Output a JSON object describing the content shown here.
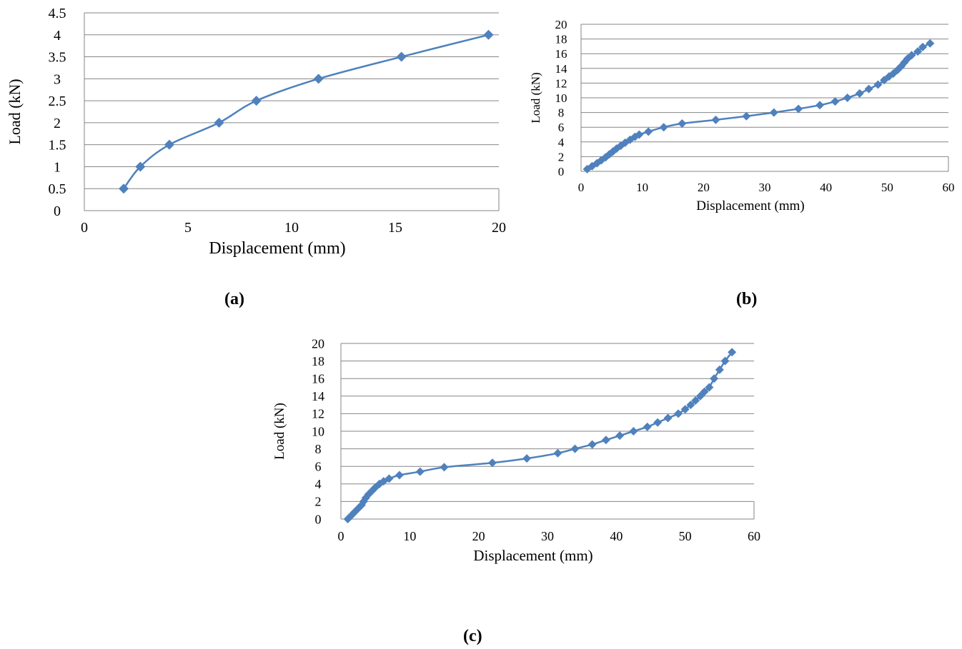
{
  "colors": {
    "series": "#4f81bd",
    "grid": "#868686",
    "axis": "#868686"
  },
  "captions": {
    "a": "(a)",
    "b": "(b)",
    "c": "(c)"
  },
  "chart_data": [
    {
      "id": "a",
      "type": "line",
      "xlabel": "Displacement (mm)",
      "ylabel": "Load (kN)",
      "xlim": [
        0,
        20
      ],
      "ylim": [
        0,
        4.5
      ],
      "xticks": [
        0,
        5,
        10,
        15,
        20
      ],
      "yticks": [
        0,
        0.5,
        1,
        1.5,
        2,
        2.5,
        3,
        3.5,
        4,
        4.5
      ],
      "ytick_labels": [
        "0",
        "0.5",
        "1",
        "1.5",
        "2",
        "2.5",
        "3",
        "3.5",
        "4",
        "4.5"
      ],
      "grid": true,
      "series": [
        {
          "x": [
            1.9,
            2.7,
            4.1,
            6.5,
            8.3,
            11.3,
            15.3,
            19.5
          ],
          "y": [
            0.5,
            1.0,
            1.5,
            2.0,
            2.5,
            3.0,
            3.5,
            4.0
          ]
        }
      ]
    },
    {
      "id": "b",
      "type": "line",
      "xlabel": "Displacement (mm)",
      "ylabel": "Load (kN)",
      "xlim": [
        0,
        60
      ],
      "ylim": [
        0,
        20
      ],
      "xticks": [
        0,
        10,
        20,
        30,
        40,
        50,
        60
      ],
      "yticks": [
        0,
        2,
        4,
        6,
        8,
        10,
        12,
        14,
        16,
        18,
        20
      ],
      "ytick_labels": [
        "0",
        "2",
        "4",
        "6",
        "8",
        "10",
        "12",
        "14",
        "16",
        "18",
        "20"
      ],
      "grid": true,
      "series": [
        {
          "x": [
            1.0,
            1.8,
            2.6,
            3.3,
            4.0,
            4.6,
            5.2,
            5.8,
            6.5,
            7.2,
            8.0,
            8.8,
            9.5,
            11.0,
            13.5,
            16.5,
            22.0,
            27.0,
            31.5,
            35.5,
            39.0,
            41.5,
            43.5,
            45.5,
            47.0,
            48.5,
            49.5,
            50.3,
            51.0,
            51.7,
            52.3,
            52.8,
            53.3,
            54.0,
            55.0,
            55.8,
            57.0
          ],
          "y": [
            0.3,
            0.7,
            1.1,
            1.5,
            1.9,
            2.3,
            2.7,
            3.1,
            3.5,
            3.9,
            4.3,
            4.7,
            5.0,
            5.4,
            6.0,
            6.5,
            7.0,
            7.5,
            8.0,
            8.5,
            9.0,
            9.5,
            10.0,
            10.6,
            11.2,
            11.8,
            12.4,
            12.9,
            13.3,
            13.8,
            14.3,
            14.8,
            15.3,
            15.8,
            16.3,
            16.9,
            17.4
          ]
        }
      ]
    },
    {
      "id": "c",
      "type": "line",
      "xlabel": "Displacement (mm)",
      "ylabel": "Load (kN)",
      "xlim": [
        0,
        60
      ],
      "ylim": [
        0,
        20
      ],
      "xticks": [
        0,
        10,
        20,
        30,
        40,
        50,
        60
      ],
      "yticks": [
        0,
        2,
        4,
        6,
        8,
        10,
        12,
        14,
        16,
        18,
        20
      ],
      "ytick_labels": [
        "0",
        "2",
        "4",
        "6",
        "8",
        "10",
        "12",
        "14",
        "16",
        "18",
        "20"
      ],
      "grid": true,
      "series": [
        {
          "x": [
            1.0,
            1.5,
            2.0,
            2.5,
            3.0,
            3.3,
            3.6,
            4.0,
            4.5,
            5.0,
            5.6,
            6.2,
            7.0,
            8.5,
            11.5,
            15.0,
            22.0,
            27.0,
            31.5,
            34.0,
            36.5,
            38.5,
            40.5,
            42.5,
            44.5,
            46.0,
            47.5,
            49.0,
            50.0,
            50.8,
            51.5,
            52.2,
            52.8,
            53.5,
            54.2,
            55.0,
            55.8,
            56.8
          ],
          "y": [
            0.0,
            0.4,
            0.8,
            1.2,
            1.6,
            2.0,
            2.4,
            2.8,
            3.2,
            3.6,
            4.0,
            4.3,
            4.6,
            5.0,
            5.4,
            5.9,
            6.4,
            6.9,
            7.5,
            8.0,
            8.5,
            9.0,
            9.5,
            10.0,
            10.5,
            11.0,
            11.5,
            12.0,
            12.5,
            13.0,
            13.5,
            14.0,
            14.5,
            15.0,
            16.0,
            17.0,
            18.0,
            19.0
          ]
        }
      ]
    }
  ]
}
